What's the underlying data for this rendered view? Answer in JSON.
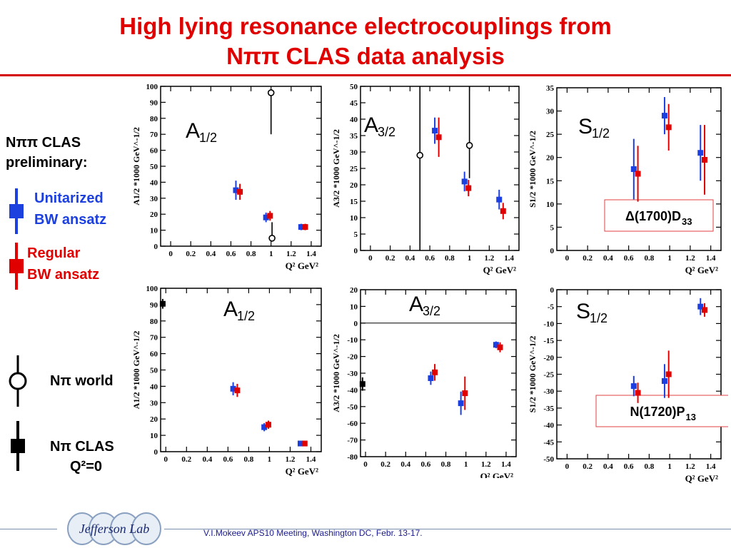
{
  "slide": {
    "title_line1": "High lying resonance electrocouplings from",
    "title_line2": "Nππ CLAS data analysis",
    "footer": "V.I.Mokeev   APS10 Meeting, Washington DC, Febr. 13-17.",
    "logo_text": "Jefferson Lab"
  },
  "legend": {
    "heading_line1": "Nππ CLAS",
    "heading_line2": "preliminary:",
    "unitarized_line1": "Unitarized",
    "unitarized_line2": "BW  ansatz",
    "regular_line1": "Regular",
    "regular_line2": "BW  ansatz",
    "npi_world": "Nπ world",
    "npi_clas_line1": "Nπ CLAS",
    "npi_clas_line2": "Q²=0",
    "colors": {
      "unitarized": "#1c3fe0",
      "regular": "#e00000",
      "npi": "#000000"
    }
  },
  "chart_data": [
    {
      "id": "p1",
      "type": "scatter",
      "amplitude": "A",
      "amp_sub": "1/2",
      "resonance": "",
      "ylabel": "A1/2 *1000 GeV^-1/2",
      "xlabel": "Q² GeV²",
      "xlim": [
        -0.1,
        1.5
      ],
      "ylim": [
        0,
        100
      ],
      "xticks": [
        0,
        0.2,
        0.4,
        0.6,
        0.8,
        1,
        1.2,
        1.4
      ],
      "xtick_labels": [
        "0",
        "0.2",
        "0.4",
        "0.6",
        "0.8",
        "1",
        "1.2",
        "1.4"
      ],
      "yticks": [
        0,
        10,
        20,
        30,
        40,
        50,
        60,
        70,
        80,
        90,
        100
      ],
      "ytick_labels": [
        "0",
        "10",
        "20",
        "30",
        "40",
        "50",
        "60",
        "70",
        "80",
        "90",
        "100"
      ],
      "series": [
        {
          "style": "unitarized",
          "points": [
            {
              "x": 0.65,
              "y": 35,
              "err": 6
            },
            {
              "x": 0.95,
              "y": 18,
              "err": 3
            },
            {
              "x": 1.3,
              "y": 12,
              "err": 2
            }
          ]
        },
        {
          "style": "regular",
          "points": [
            {
              "x": 0.69,
              "y": 34,
              "err": 5
            },
            {
              "x": 0.99,
              "y": 19,
              "err": 3
            },
            {
              "x": 1.34,
              "y": 12,
              "err": 2
            }
          ]
        },
        {
          "style": "world",
          "points": [
            {
              "x": 1.0,
              "y": 96,
              "err_up": 0,
              "err_down": 26
            },
            {
              "x": 1.01,
              "y": 5,
              "err_up": 10,
              "err_down": 0
            }
          ]
        }
      ]
    },
    {
      "id": "p2",
      "type": "scatter",
      "amplitude": "A",
      "amp_sub": "3/2",
      "resonance": "",
      "ylabel": "A3/2 *1000 GeV^-1/2",
      "xlabel": "Q² GeV²",
      "xlim": [
        -0.1,
        1.5
      ],
      "ylim": [
        0,
        50
      ],
      "xticks": [
        0,
        0.2,
        0.4,
        0.6,
        0.8,
        1,
        1.2,
        1.4
      ],
      "xtick_labels": [
        "0",
        "0.2",
        "0.4",
        "0.6",
        "0.8",
        "1",
        "1.2",
        "1.4"
      ],
      "yticks": [
        0,
        5,
        10,
        15,
        20,
        25,
        30,
        35,
        40,
        45,
        50
      ],
      "ytick_labels": [
        "0",
        "5",
        "10",
        "15",
        "20",
        "25",
        "30",
        "35",
        "40",
        "45",
        "50"
      ],
      "series": [
        {
          "style": "unitarized",
          "points": [
            {
              "x": 0.65,
              "y": 36.5,
              "err": 4
            },
            {
              "x": 0.95,
              "y": 21,
              "err": 3
            },
            {
              "x": 1.3,
              "y": 15.5,
              "err": 3
            }
          ]
        },
        {
          "style": "regular",
          "points": [
            {
              "x": 0.69,
              "y": 34.5,
              "err": 6
            },
            {
              "x": 0.99,
              "y": 19,
              "err": 2.5
            },
            {
              "x": 1.34,
              "y": 12,
              "err": 2.5
            }
          ]
        },
        {
          "style": "world",
          "points": [
            {
              "x": 0.5,
              "y": 29,
              "err_up": 21,
              "err_down": 29
            },
            {
              "x": 1.0,
              "y": 32,
              "err_up": 18,
              "err_down": 10
            }
          ]
        }
      ]
    },
    {
      "id": "p3",
      "type": "scatter",
      "amplitude": "S",
      "amp_sub": "1/2",
      "resonance": "Δ(1700)D",
      "resonance_sub": "33",
      "ylabel": "S1/2 *1000 GeV^-1/2",
      "xlabel": "Q² GeV²",
      "xlim": [
        -0.1,
        1.5
      ],
      "ylim": [
        0,
        35
      ],
      "xticks": [
        0,
        0.2,
        0.4,
        0.6,
        0.8,
        1,
        1.2,
        1.4
      ],
      "xtick_labels": [
        "0",
        "0.2",
        "0.4",
        "0.6",
        "0.8",
        "1",
        "1.2",
        "1.4"
      ],
      "yticks": [
        0,
        5,
        10,
        15,
        20,
        25,
        30,
        35
      ],
      "ytick_labels": [
        "0",
        "5",
        "10",
        "15",
        "20",
        "25",
        "30",
        "35"
      ],
      "series": [
        {
          "style": "unitarized",
          "points": [
            {
              "x": 0.65,
              "y": 17.5,
              "err": 6.5
            },
            {
              "x": 0.95,
              "y": 29,
              "err": 4
            },
            {
              "x": 1.3,
              "y": 21,
              "err": 6
            }
          ]
        },
        {
          "style": "regular",
          "points": [
            {
              "x": 0.69,
              "y": 16.5,
              "err": 6
            },
            {
              "x": 0.99,
              "y": 26.5,
              "err": 5
            },
            {
              "x": 1.34,
              "y": 19.5,
              "err": 7.5
            }
          ]
        }
      ]
    },
    {
      "id": "p4",
      "type": "scatter",
      "amplitude": "A",
      "amp_sub": "1/2",
      "resonance": "",
      "ylabel": "A1/2 *1000 GeV^-1/2",
      "xlabel": "Q² GeV²",
      "xlim": [
        -0.05,
        1.5
      ],
      "ylim": [
        0,
        100
      ],
      "xticks": [
        0,
        0.2,
        0.4,
        0.6,
        0.8,
        1,
        1.2,
        1.4
      ],
      "xtick_labels": [
        "0",
        "0.2",
        "0.4",
        "0.6",
        "0.8",
        "1",
        "1.2",
        "1.4"
      ],
      "yticks": [
        0,
        10,
        20,
        30,
        40,
        50,
        60,
        70,
        80,
        90,
        100
      ],
      "ytick_labels": [
        "0",
        "10",
        "20",
        "30",
        "40",
        "50",
        "60",
        "70",
        "80",
        "90",
        "100"
      ],
      "series": [
        {
          "style": "unitarized",
          "points": [
            {
              "x": 0.65,
              "y": 38.5,
              "err": 4
            },
            {
              "x": 0.95,
              "y": 15,
              "err": 2.5
            },
            {
              "x": 1.3,
              "y": 5,
              "err": 1.5
            }
          ]
        },
        {
          "style": "regular",
          "points": [
            {
              "x": 0.69,
              "y": 37.5,
              "err": 4
            },
            {
              "x": 0.99,
              "y": 16.5,
              "err": 2.5
            },
            {
              "x": 1.34,
              "y": 5,
              "err": 1.5
            }
          ]
        },
        {
          "style": "clas",
          "points": [
            {
              "x": -0.03,
              "y": 90.5,
              "err": 3
            }
          ]
        }
      ]
    },
    {
      "id": "p5",
      "type": "scatter",
      "amplitude": "A",
      "amp_sub": "3/2",
      "resonance": "",
      "ylabel": "A3/2 *1000 GeV^-1/2",
      "xlabel": "Q² GeV²",
      "xlim": [
        -0.05,
        1.5
      ],
      "ylim": [
        -80,
        20
      ],
      "zero_line": true,
      "xticks": [
        0,
        0.2,
        0.4,
        0.6,
        0.8,
        1,
        1.2,
        1.4
      ],
      "xtick_labels": [
        "0",
        "0.2",
        "0.4",
        "0.6",
        "0.8",
        "1",
        "1.2",
        "1.4"
      ],
      "yticks": [
        -80,
        -70,
        -60,
        -50,
        -40,
        -30,
        -20,
        -10,
        0,
        10,
        20
      ],
      "ytick_labels": [
        "-80",
        "-70",
        "-60",
        "-50",
        "-40",
        "-30",
        "-20",
        "-10",
        "0",
        "10",
        "20"
      ],
      "series": [
        {
          "style": "unitarized",
          "points": [
            {
              "x": 0.65,
              "y": -33,
              "err": 4
            },
            {
              "x": 0.95,
              "y": -48,
              "err": 7
            },
            {
              "x": 1.3,
              "y": -13,
              "err": 2
            }
          ]
        },
        {
          "style": "regular",
          "points": [
            {
              "x": 0.69,
              "y": -29.5,
              "err": 5
            },
            {
              "x": 0.99,
              "y": -42,
              "err": 10
            },
            {
              "x": 1.34,
              "y": -14.5,
              "err": 3
            }
          ]
        },
        {
          "style": "clas",
          "points": [
            {
              "x": -0.03,
              "y": -36.5,
              "err": 4
            }
          ]
        }
      ]
    },
    {
      "id": "p6",
      "type": "scatter",
      "amplitude": "S",
      "amp_sub": "1/2",
      "resonance": "N(1720)P",
      "resonance_sub": "13",
      "ylabel": "S1/2 *1000 GeV^-1/2",
      "xlabel": "Q² GeV²",
      "xlim": [
        -0.1,
        1.5
      ],
      "ylim": [
        -50,
        0
      ],
      "xticks": [
        0,
        0.2,
        0.4,
        0.6,
        0.8,
        1,
        1.2,
        1.4
      ],
      "xtick_labels": [
        "0",
        "0.2",
        "0.4",
        "0.6",
        "0.8",
        "1",
        "1.2",
        "1.4"
      ],
      "yticks": [
        -50,
        -45,
        -40,
        -35,
        -30,
        -25,
        -20,
        -15,
        -10,
        -5,
        0
      ],
      "ytick_labels": [
        "-50",
        "-45",
        "-40",
        "-35",
        "-30",
        "-25",
        "-20",
        "-15",
        "-10",
        "-5",
        "0"
      ],
      "series": [
        {
          "style": "unitarized",
          "points": [
            {
              "x": 0.65,
              "y": -28.5,
              "err": 3
            },
            {
              "x": 0.95,
              "y": -27,
              "err": 5
            },
            {
              "x": 1.3,
              "y": -5,
              "err": 2.5
            }
          ]
        },
        {
          "style": "regular",
          "points": [
            {
              "x": 0.69,
              "y": -30.5,
              "err": 3
            },
            {
              "x": 0.99,
              "y": -25,
              "err": 7
            },
            {
              "x": 1.34,
              "y": -6,
              "err": 2
            }
          ]
        }
      ]
    }
  ]
}
